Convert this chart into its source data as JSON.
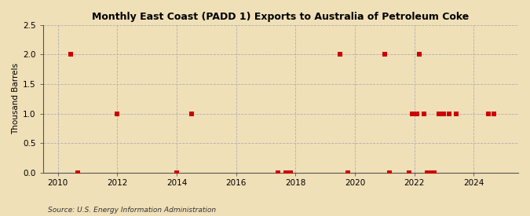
{
  "title": "Monthly East Coast (PADD 1) Exports to Australia of Petroleum Coke",
  "ylabel": "Thousand Barrels",
  "source": "Source: U.S. Energy Information Administration",
  "background_color": "#f0e0b8",
  "plot_background_color": "#f0e0b8",
  "xlim": [
    2009.5,
    2025.5
  ],
  "ylim": [
    0,
    2.5
  ],
  "yticks": [
    0.0,
    0.5,
    1.0,
    1.5,
    2.0,
    2.5
  ],
  "xticks": [
    2010,
    2012,
    2014,
    2016,
    2018,
    2020,
    2022,
    2024
  ],
  "marker_color": "#cc0000",
  "marker_size": 18,
  "data_points": [
    [
      2010.42,
      2.0
    ],
    [
      2010.67,
      0.0
    ],
    [
      2012.0,
      1.0
    ],
    [
      2014.0,
      0.0
    ],
    [
      2014.5,
      1.0
    ],
    [
      2017.42,
      0.0
    ],
    [
      2017.67,
      0.0
    ],
    [
      2017.83,
      0.0
    ],
    [
      2019.5,
      2.0
    ],
    [
      2019.75,
      0.0
    ],
    [
      2021.0,
      2.0
    ],
    [
      2021.17,
      0.0
    ],
    [
      2021.83,
      0.0
    ],
    [
      2021.92,
      1.0
    ],
    [
      2022.08,
      1.0
    ],
    [
      2022.17,
      2.0
    ],
    [
      2022.33,
      1.0
    ],
    [
      2022.42,
      0.0
    ],
    [
      2022.5,
      0.0
    ],
    [
      2022.67,
      0.0
    ],
    [
      2022.83,
      1.0
    ],
    [
      2023.0,
      1.0
    ],
    [
      2023.17,
      1.0
    ],
    [
      2023.42,
      1.0
    ],
    [
      2024.5,
      1.0
    ],
    [
      2024.67,
      1.0
    ]
  ]
}
